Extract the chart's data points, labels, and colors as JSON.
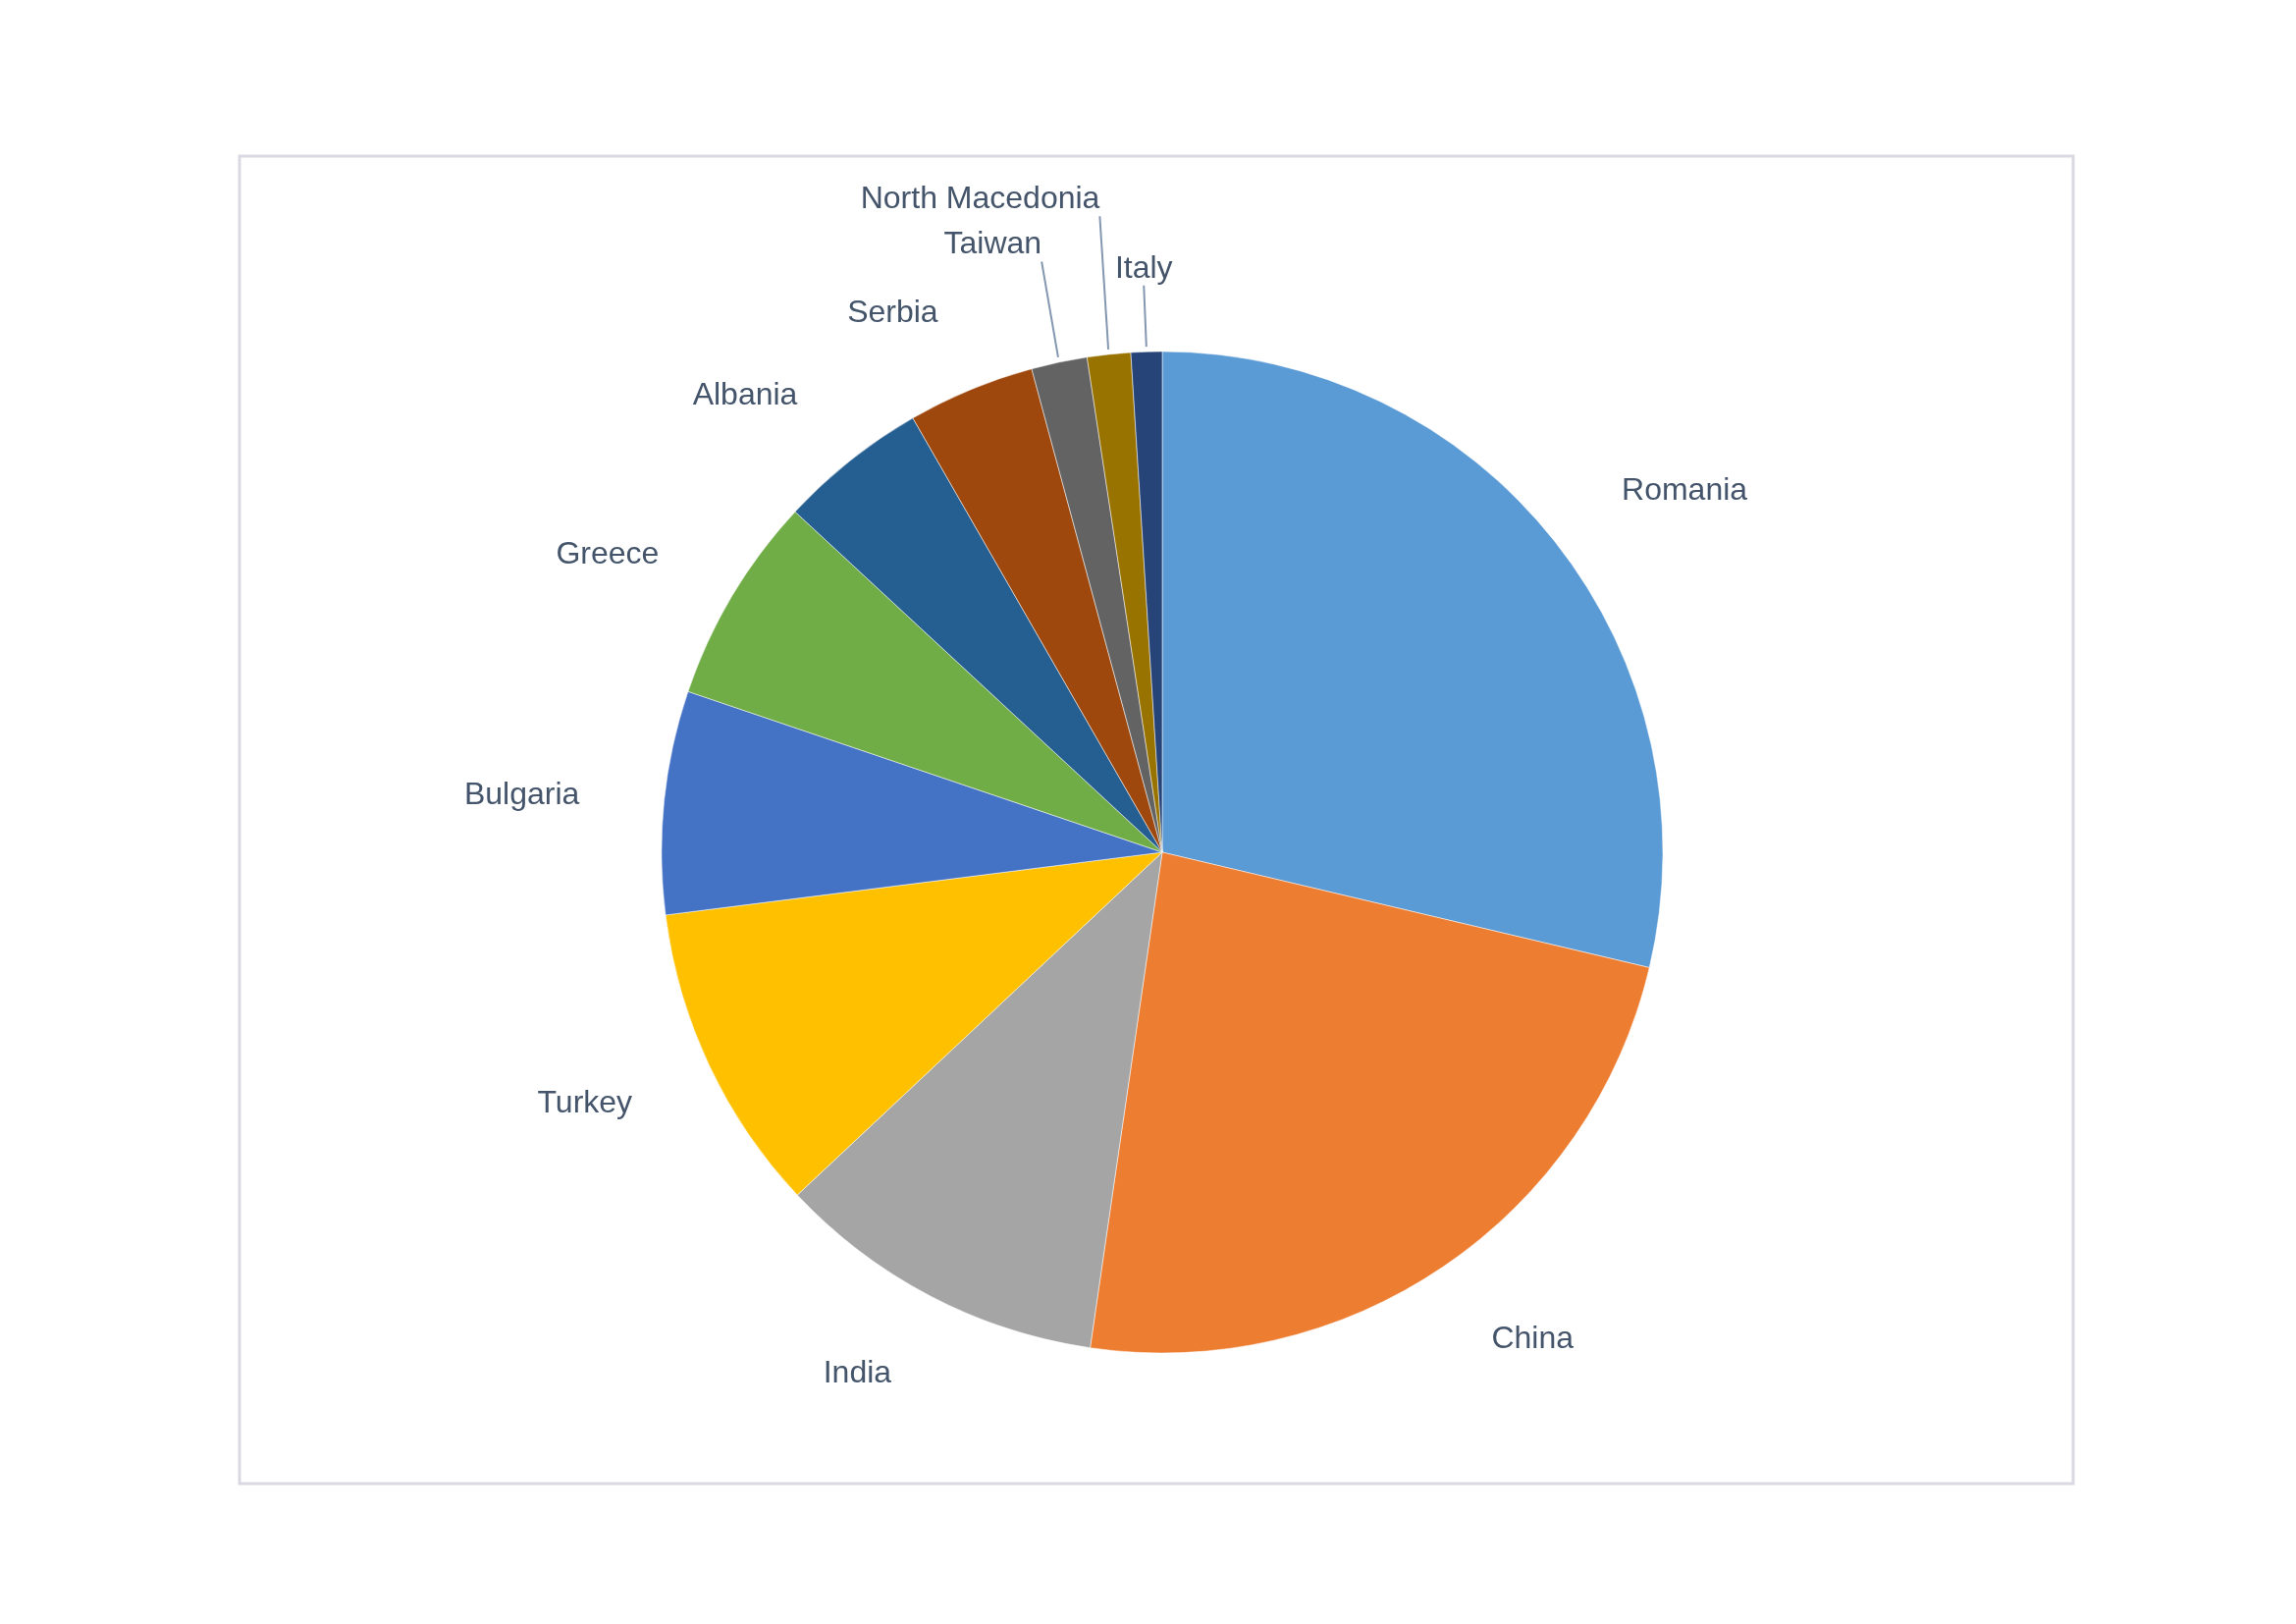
{
  "chart_data": {
    "type": "pie",
    "categories": [
      "Romania",
      "China",
      "India",
      "Turkey",
      "Bulgaria",
      "Greece",
      "Albania",
      "Serbia",
      "Taiwan",
      "North Macedonia",
      "Italy"
    ],
    "values": [
      28.7,
      23.6,
      10.7,
      10.0,
      7.2,
      6.7,
      4.8,
      4.1,
      1.8,
      1.4,
      1.0
    ],
    "colors": [
      "#5b9bd5",
      "#ed7d31",
      "#a5a5a5",
      "#ffc000",
      "#4472c4",
      "#70ad47",
      "#255e91",
      "#9e480e",
      "#636363",
      "#997300",
      "#264478"
    ],
    "legend": false
  }
}
